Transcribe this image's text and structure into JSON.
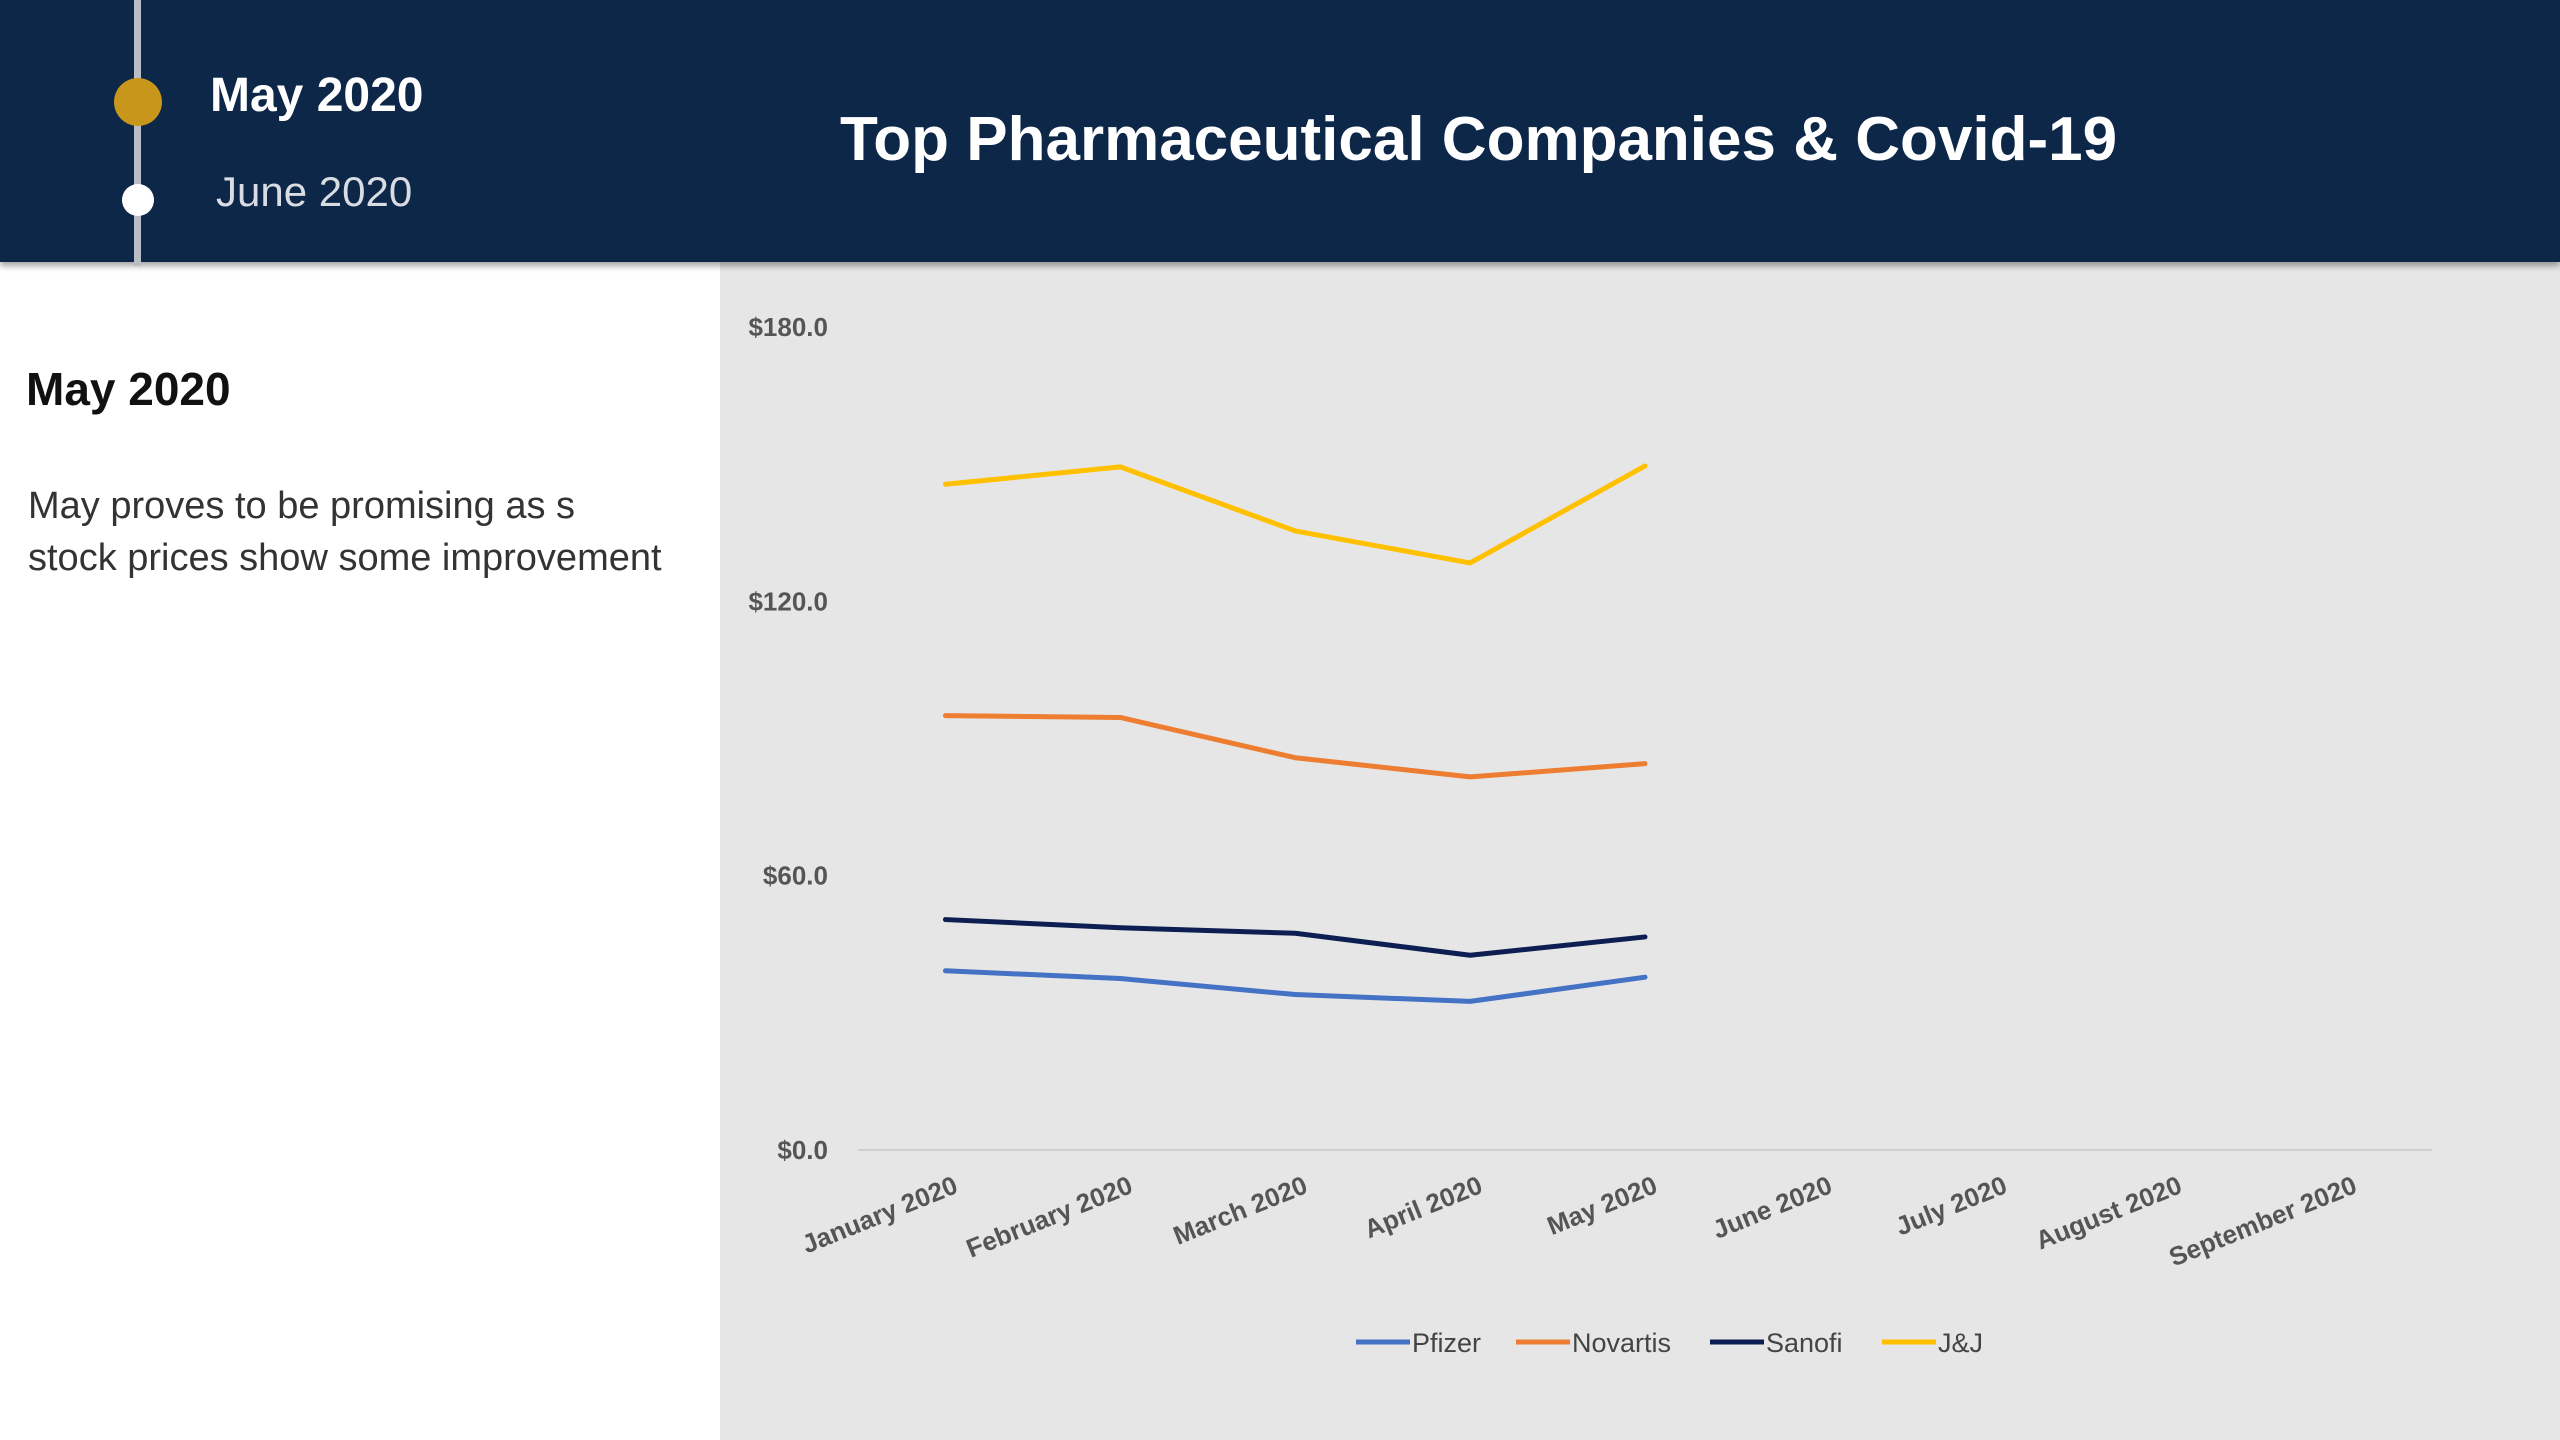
{
  "header": {
    "title": "Top Pharmaceutical Companies & Covid-19",
    "timeline": {
      "active_label": "May 2020",
      "next_label": "June 2020"
    },
    "colors": {
      "background": "#0d2749",
      "active_dot": "#c8961a",
      "next_dot": "#ffffff"
    }
  },
  "panel": {
    "heading": "May 2020",
    "body": "May proves to be promising as s stock prices show some improvement"
  },
  "chart_data": {
    "type": "line",
    "categories": [
      "January 2020",
      "February 2020",
      "March 2020",
      "April 2020",
      "May 2020",
      "June 2020",
      "July 2020",
      "August 2020",
      "September 2020"
    ],
    "ylim": [
      0,
      180
    ],
    "yticks": [
      0,
      60,
      120,
      180
    ],
    "ytick_labels": [
      "$0.0",
      "$60.0",
      "$120.0",
      "$180.0"
    ],
    "grid": false,
    "legend_position": "bottom",
    "series": [
      {
        "name": "Pfizer",
        "color": "#4472c4",
        "values": [
          39.2,
          37.5,
          34.0,
          32.5,
          37.8,
          null,
          null,
          null,
          null
        ]
      },
      {
        "name": "Novartis",
        "color": "#ed7d31",
        "values": [
          95.0,
          94.6,
          85.8,
          81.6,
          84.5,
          null,
          null,
          null,
          null
        ]
      },
      {
        "name": "Sanofi",
        "color": "#0d1f52",
        "values": [
          50.4,
          48.6,
          47.4,
          42.6,
          46.6,
          null,
          null,
          null,
          null
        ]
      },
      {
        "name": "J&J",
        "color": "#ffc000",
        "values": [
          145.6,
          149.4,
          135.4,
          128.4,
          149.6,
          null,
          null,
          null,
          null
        ]
      }
    ]
  }
}
